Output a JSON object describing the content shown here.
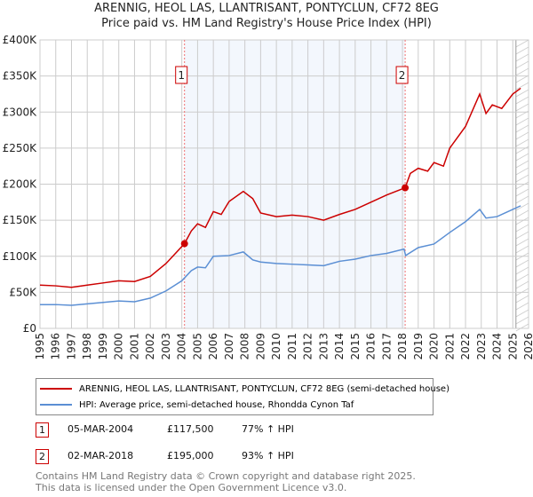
{
  "chart_data": {
    "type": "line",
    "title": "ARENNIG, HEOL LAS, LLANTRISANT, PONTYCLUN, CF72 8EG",
    "subtitle": "Price paid vs. HM Land Registry's House Price Index (HPI)",
    "xlim": [
      1995,
      2026
    ],
    "ylim": [
      0,
      400000
    ],
    "x_ticks": [
      "1995",
      "1996",
      "1997",
      "1998",
      "1999",
      "2000",
      "2001",
      "2002",
      "2003",
      "2004",
      "2005",
      "2006",
      "2007",
      "2008",
      "2009",
      "2010",
      "2011",
      "2012",
      "2013",
      "2014",
      "2015",
      "2016",
      "2017",
      "2018",
      "2019",
      "2020",
      "2021",
      "2022",
      "2023",
      "2024",
      "2025",
      "2026"
    ],
    "y_ticks": [
      {
        "v": 0,
        "label": "£0"
      },
      {
        "v": 50000,
        "label": "£50K"
      },
      {
        "v": 100000,
        "label": "£100K"
      },
      {
        "v": 150000,
        "label": "£150K"
      },
      {
        "v": 200000,
        "label": "£200K"
      },
      {
        "v": 250000,
        "label": "£250K"
      },
      {
        "v": 300000,
        "label": "£300K"
      },
      {
        "v": 350000,
        "label": "£350K"
      },
      {
        "v": 400000,
        "label": "£400K"
      }
    ],
    "grid": true,
    "series": [
      {
        "name": "ARENNIG, HEOL LAS, LLANTRISANT, PONTYCLUN, CF72 8EG (semi-detached house)",
        "color": "#cc0000",
        "x": [
          1995,
          1996,
          1997,
          1998,
          1999,
          2000,
          2001,
          2002,
          2003,
          2004.17,
          2004.6,
          2005,
          2005.5,
          2006,
          2006.5,
          2007,
          2007.9,
          2008.5,
          2009,
          2010,
          2011,
          2012,
          2013,
          2014,
          2015,
          2016,
          2017,
          2018.17,
          2018.5,
          2019,
          2019.6,
          2020,
          2020.6,
          2021,
          2022,
          2022.9,
          2023.3,
          2023.7,
          2024.3,
          2025,
          2025.5
        ],
        "y": [
          60000,
          59000,
          57000,
          60000,
          63000,
          66000,
          65000,
          72000,
          90000,
          117500,
          135000,
          145000,
          140000,
          162000,
          158000,
          176000,
          190000,
          180000,
          160000,
          155000,
          157000,
          155000,
          150000,
          158000,
          165000,
          175000,
          185000,
          195000,
          215000,
          222000,
          218000,
          230000,
          225000,
          250000,
          280000,
          325000,
          298000,
          310000,
          305000,
          325000,
          333000
        ]
      },
      {
        "name": "HPI: Average price, semi-detached house, Rhondda Cynon Taf",
        "color": "#5b8fd4",
        "x": [
          1995,
          1996,
          1997,
          1998,
          1999,
          2000,
          2001,
          2002,
          2003,
          2004,
          2004.6,
          2005,
          2005.5,
          2006,
          2007,
          2007.9,
          2008.5,
          2009,
          2010,
          2011,
          2012,
          2013,
          2014,
          2015,
          2016,
          2017,
          2018.1,
          2018.2,
          2019,
          2020,
          2021,
          2022,
          2022.9,
          2023.3,
          2024,
          2025,
          2025.5
        ],
        "y": [
          33000,
          33000,
          32000,
          34000,
          36000,
          38000,
          37000,
          42000,
          52000,
          66000,
          80000,
          85000,
          84000,
          100000,
          101000,
          106000,
          95000,
          92000,
          90000,
          89000,
          88000,
          87000,
          93000,
          96000,
          101000,
          104000,
          110000,
          101000,
          112000,
          117000,
          133000,
          148000,
          165000,
          153000,
          155000,
          165000,
          170000
        ]
      }
    ],
    "annotations": [
      {
        "id": "1",
        "x": 2004.17,
        "y": 117500,
        "date": "05-MAR-2004",
        "price": "£117,500",
        "hpi": "77% ↑ HPI"
      },
      {
        "id": "2",
        "x": 2018.17,
        "y": 195000,
        "date": "02-MAR-2018",
        "price": "£195,000",
        "hpi": "93% ↑ HPI"
      }
    ],
    "legend_position": "below"
  },
  "footer": [
    "Contains HM Land Registry data © Crown copyright and database right 2025.",
    "This data is licensed under the Open Government Licence v3.0."
  ]
}
